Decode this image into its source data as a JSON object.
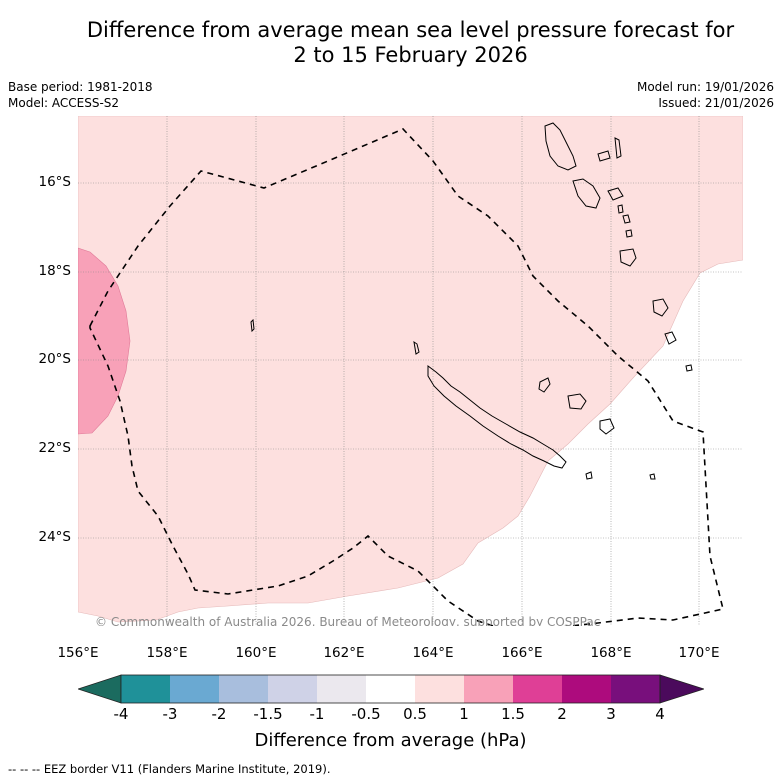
{
  "title_line1": "Difference from average mean sea level pressure forecast for",
  "title_line2": "2 to 15 February 2026",
  "base_period": "Base period: 1981-2018",
  "model": "Model: ACCESS-S2",
  "model_run": "Model run: 19/01/2026",
  "issued": "Issued: 21/01/2026",
  "copyright": "© Commonwealth of Australia 2026, Bureau of Meteorology, supported by COSPPac",
  "footer": "-- -- -- EEZ border V11 (Flanders Marine Institute, 2019).",
  "lat_labels": [
    "16°S",
    "18°S",
    "20°S",
    "22°S",
    "24°S"
  ],
  "lon_labels": [
    "156°E",
    "158°E",
    "160°E",
    "162°E",
    "164°E",
    "166°E",
    "168°E",
    "170°E"
  ],
  "colorbar": {
    "title": "Difference from average (hPa)",
    "ticks": [
      "-4",
      "-3",
      "-2",
      "-1.5",
      "-1",
      "-0.5",
      "0.5",
      "1",
      "1.5",
      "2",
      "3",
      "4"
    ],
    "colors": [
      "#1b6b5f",
      "#1f9199",
      "#6aa9d2",
      "#a8bedd",
      "#cfd2e7",
      "#ebe8ee",
      "#ffffff",
      "#fde0df",
      "#f8a1b8",
      "#df3f96",
      "#ad0b7d",
      "#780f7c",
      "#4b0a5c"
    ]
  },
  "shading": {
    "weak_positive": "#fde0df",
    "moderate_positive": "#f8a1b8"
  }
}
